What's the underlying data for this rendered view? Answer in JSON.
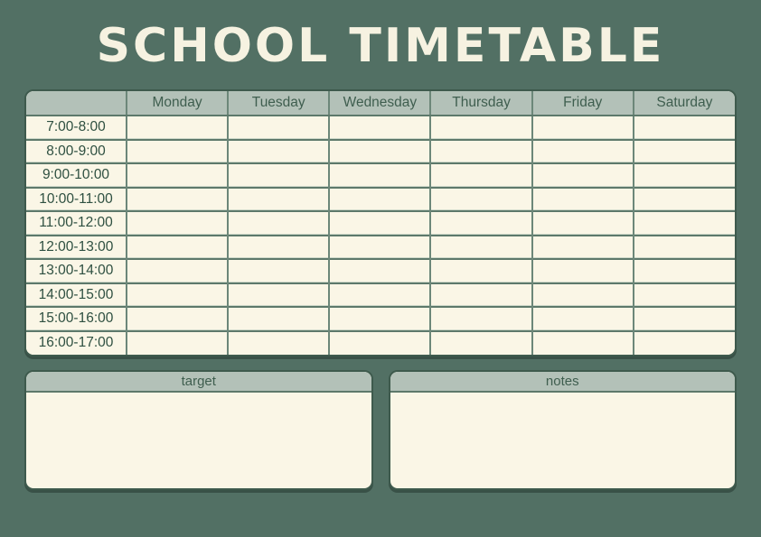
{
  "title": "SCHOOL TIMETABLE",
  "timetable": {
    "corner_label": "",
    "days": [
      "Monday",
      "Tuesday",
      "Wednesday",
      "Thursday",
      "Friday",
      "Saturday"
    ],
    "time_slots": [
      "7:00-8:00",
      "8:00-9:00",
      "9:00-10:00",
      "10:00-11:00",
      "11:00-12:00",
      "12:00-13:00",
      "13:00-14:00",
      "14:00-15:00",
      "15:00-16:00",
      "16:00-17:00"
    ],
    "cell_values": ""
  },
  "panels": [
    {
      "label": "target",
      "content": ""
    },
    {
      "label": "notes",
      "content": ""
    }
  ],
  "colors": {
    "background": "#527064",
    "header_band": "#b3c1b8",
    "cell_cream": "#faf6e6",
    "outer_border": "#3e5a4d",
    "grid_vertical": "#6c8779",
    "grid_horizontal": "#5d796b",
    "time_text": "#2f5041",
    "day_text": "#3f5e4f",
    "title_text": "#f6f2e1"
  }
}
